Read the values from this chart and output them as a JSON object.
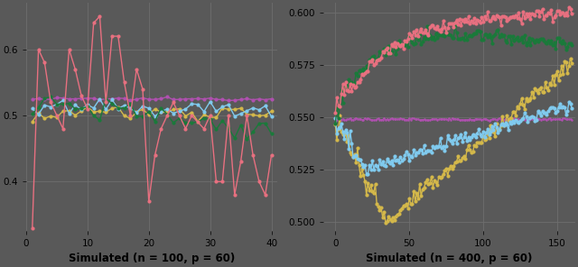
{
  "left_title": "Simulated (n = 100, p = 60)",
  "right_title": "Simulated (n = 400, p = 60)",
  "left_xlim": [
    0,
    41
  ],
  "left_ylim": [
    0.325,
    0.67
  ],
  "left_yticks": [
    0.4,
    0.5,
    0.6
  ],
  "left_xticks": [
    0,
    10,
    20,
    30,
    40
  ],
  "right_xlim": [
    -8,
    162
  ],
  "right_ylim": [
    0.4955,
    0.6045
  ],
  "right_yticks": [
    0.5,
    0.525,
    0.55,
    0.575,
    0.6
  ],
  "right_xticks": [
    0,
    50,
    100,
    150
  ],
  "colors": {
    "pink": "#E87080",
    "green": "#1A7A3A",
    "yellow": "#D4B84A",
    "blue": "#80CAEE",
    "purple": "#B050B0"
  },
  "bg_color": "#595959",
  "grid_color": "#6e6e6e"
}
